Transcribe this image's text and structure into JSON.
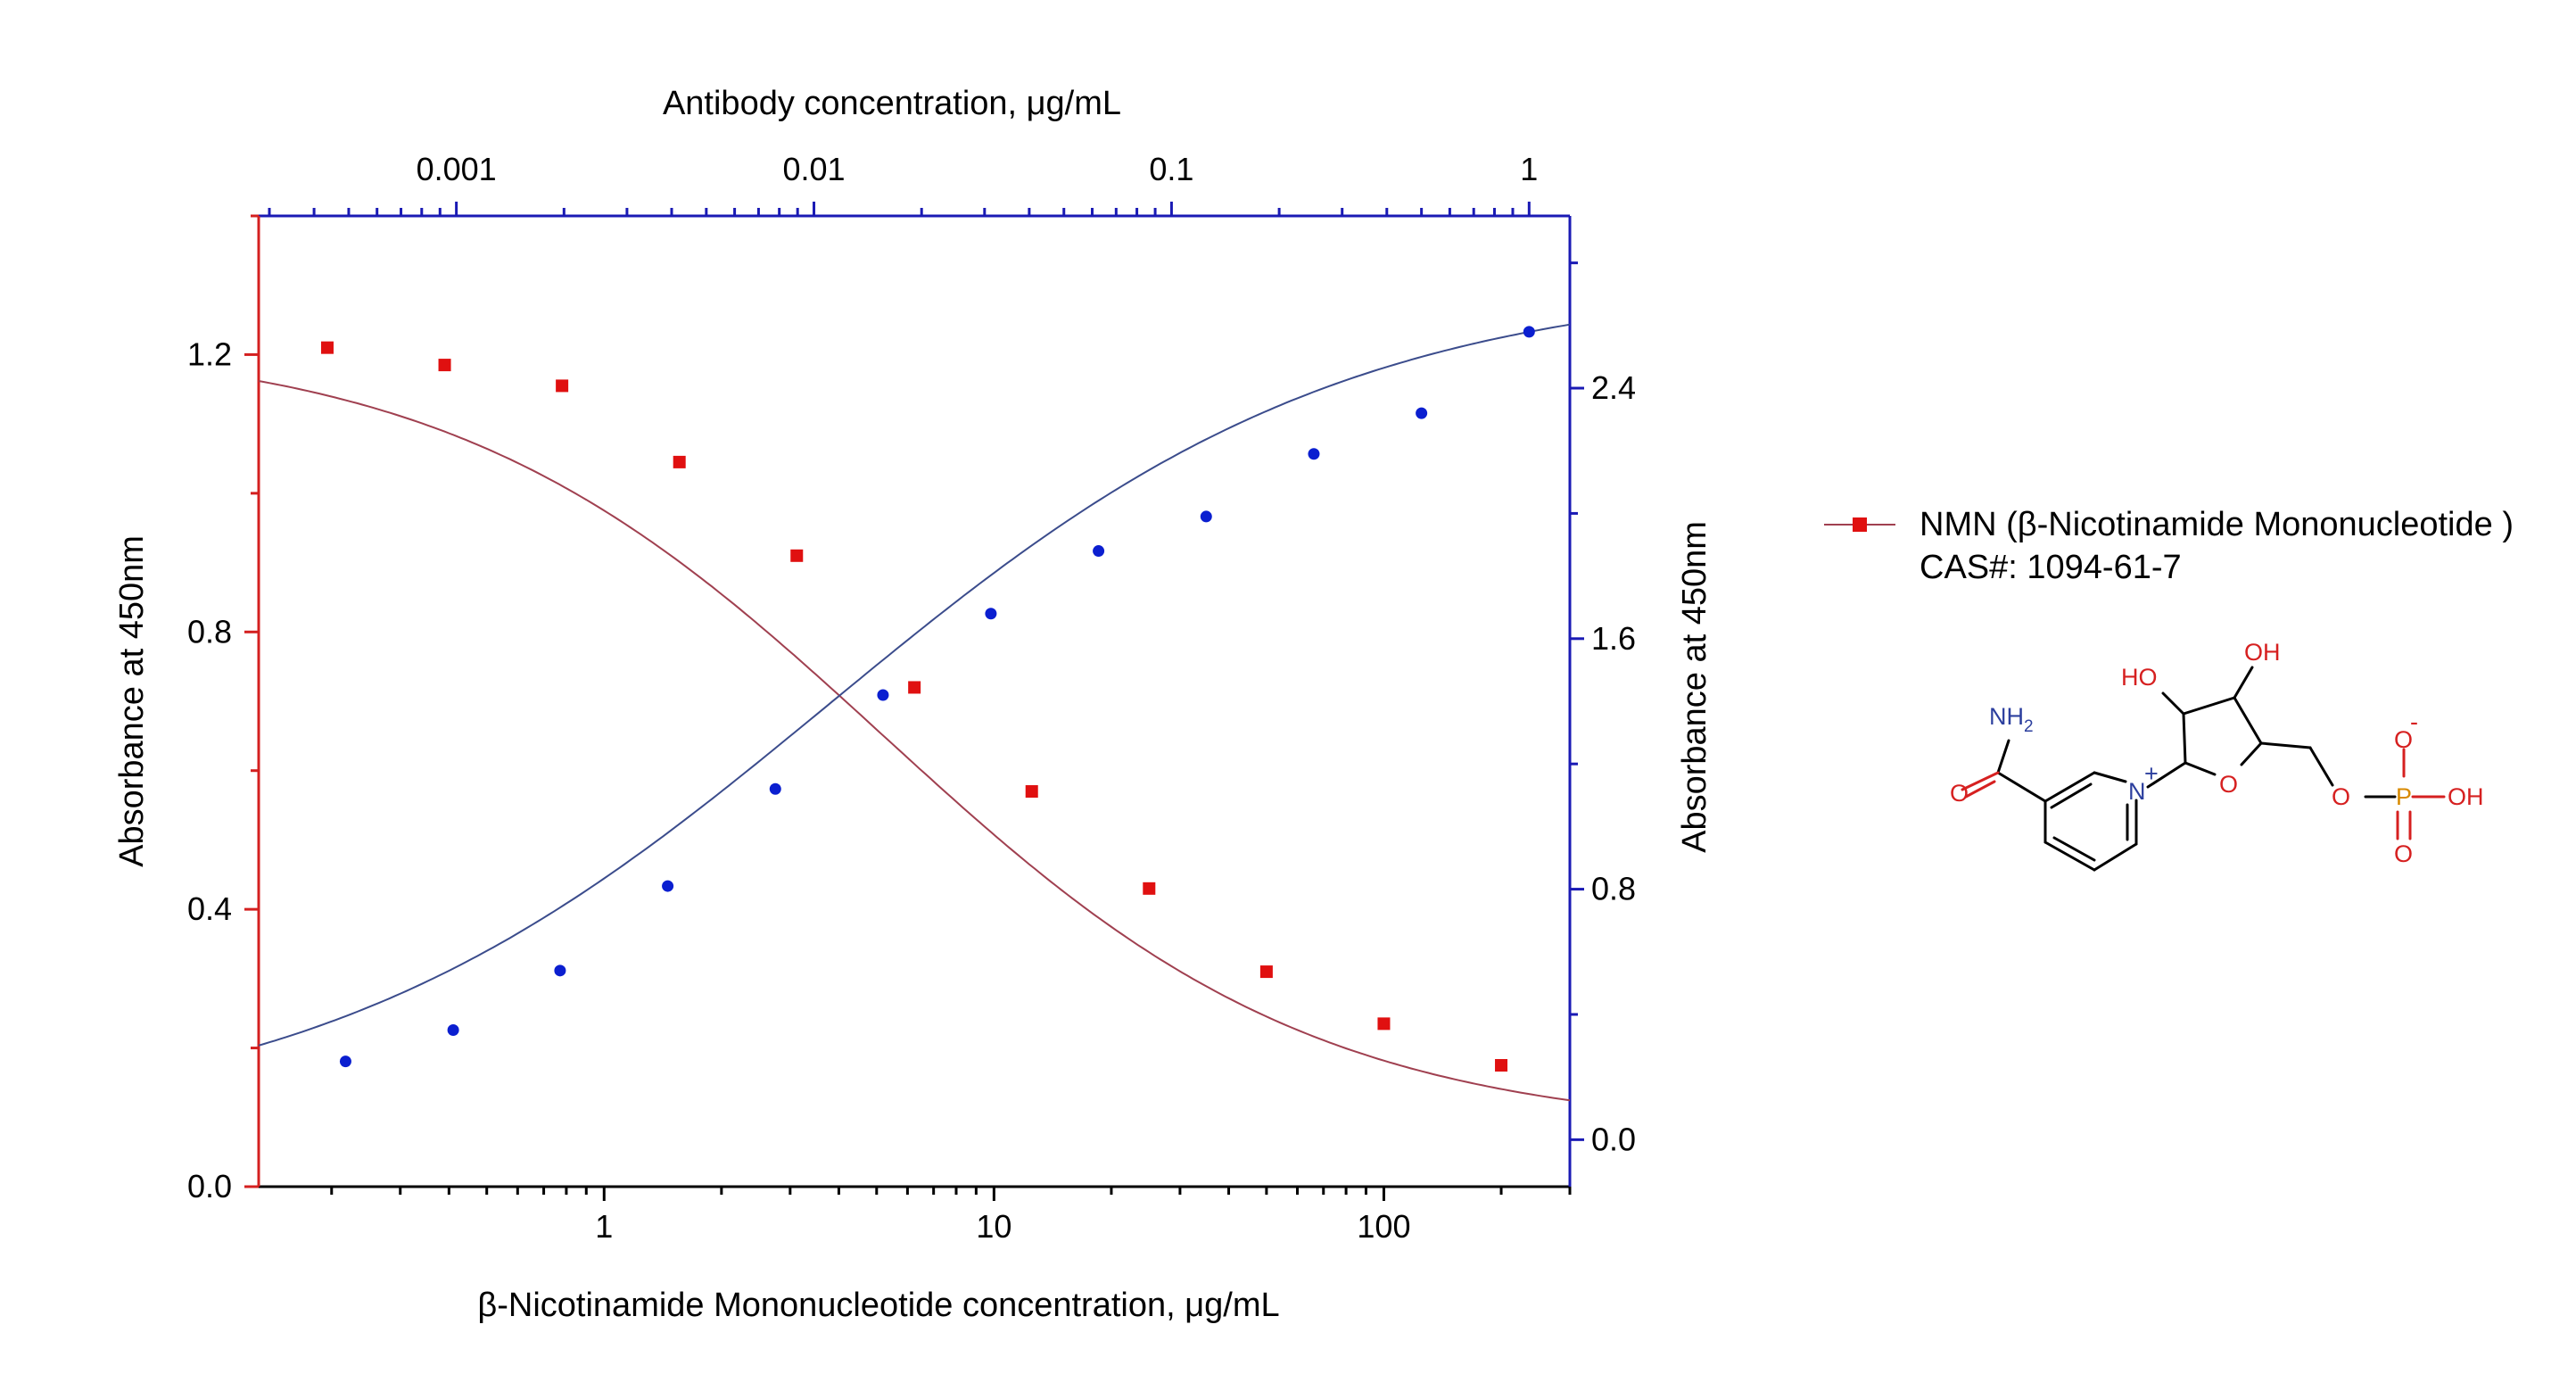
{
  "colors": {
    "left_axis": "#d42020",
    "right_axis": "#1a1ab4",
    "red_series": "#e01010",
    "blue_series": "#0b1fd0",
    "red_curve": "#a04050",
    "blue_curve": "#3b4c8c",
    "chem_red": "#d62020",
    "chem_blue": "#2c3f9e",
    "chem_orange": "#d88a00"
  },
  "chart_data": {
    "type": "scatter",
    "x_axis_bottom": {
      "label": "β-Nicotinamide Mononucleotide concentration, μg/mL",
      "scale": "log",
      "range": [
        0.13,
        300
      ],
      "ticks": [
        1,
        10,
        100
      ],
      "tick_labels": [
        "1",
        "10",
        "100"
      ]
    },
    "x_axis_top": {
      "label": "Antibody concentration, μg/mL",
      "scale": "log",
      "range": [
        0.00028,
        1.3
      ],
      "ticks": [
        0.001,
        0.01,
        0.1,
        1
      ],
      "tick_labels": [
        "0.001",
        "0.01",
        "0.1",
        "1"
      ]
    },
    "y_axis_left": {
      "label": "Absorbance at 450nm",
      "range": [
        0,
        1.4
      ],
      "ticks": [
        0,
        0.4,
        0.8,
        1.2
      ],
      "tick_labels": [
        "0.0",
        "0.4",
        "0.8",
        "1.2"
      ]
    },
    "y_axis_right": {
      "label": "Absorbance at 450nm",
      "range": [
        -0.15,
        2.95
      ],
      "ticks": [
        0,
        0.8,
        1.6,
        2.4
      ],
      "tick_labels": [
        "0.0",
        "0.8",
        "1.6",
        "2.4"
      ]
    },
    "legend": {
      "position": "right",
      "line1": "NMN (β-Nicotinamide Mononucleotide )",
      "line2": "CAS#: 1094-61-7"
    },
    "series": [
      {
        "name": "NMN (β-Nicotinamide Mononucleotide )",
        "axis": "bottom-left",
        "marker": "square",
        "x": [
          0.195,
          0.39,
          0.78,
          1.56,
          3.12,
          6.25,
          12.5,
          25,
          50,
          100,
          200
        ],
        "y": [
          1.21,
          1.185,
          1.155,
          1.045,
          0.91,
          0.72,
          0.57,
          0.43,
          0.31,
          0.235,
          0.175
        ],
        "fit": {
          "A1": 1.223,
          "A2": 0.078,
          "x0": 5.2,
          "p": 0.78
        }
      },
      {
        "name": "",
        "axis": "top-right",
        "marker": "circle",
        "x": [
          0.00049,
          0.00098,
          0.00195,
          0.0039,
          0.0078,
          0.0156,
          0.03125,
          0.0625,
          0.125,
          0.25,
          0.5,
          1
        ],
        "y": [
          0.25,
          0.35,
          0.54,
          0.81,
          1.12,
          1.42,
          1.68,
          1.88,
          1.99,
          2.19,
          2.32,
          2.58
        ],
        "fit": {
          "A1": 0.03,
          "A2": 2.75,
          "x0": 0.011,
          "p": 0.6
        }
      }
    ]
  },
  "structure": {
    "labels": {
      "nh2": "NH",
      "nh2_sub": "2",
      "o_amide": "O",
      "n_plus": "N",
      "plus": "+",
      "ho": "HO",
      "oh": "OH",
      "o_ring": "O",
      "o_link": "O",
      "p": "P",
      "o_minus": "O",
      "minus": "-",
      "oh_p": "OH",
      "o_double": "O"
    }
  }
}
